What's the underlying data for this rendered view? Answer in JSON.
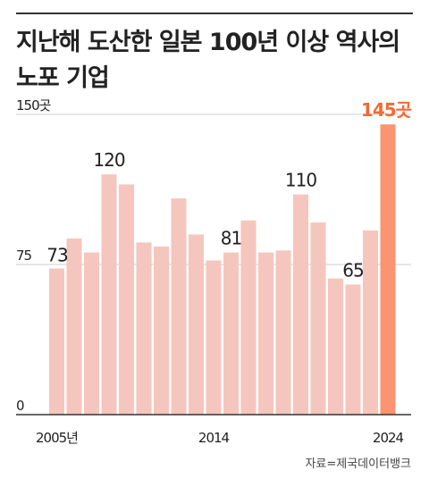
{
  "title_line1": "지난해 도산한 일본 100년 이상 역사의",
  "title_line2": "노포 기업",
  "source": "자료=제국데이터뱅크",
  "colors": {
    "bar": "#f5c6bd",
    "highlight": "#fb9470",
    "highlight_label": "#f26a34",
    "grid": "#cccccc",
    "axis": "#333333",
    "text": "#222222"
  },
  "chart_data": {
    "type": "bar",
    "categories": [
      "2005",
      "2006",
      "2007",
      "2008",
      "2009",
      "2010",
      "2011",
      "2012",
      "2013",
      "2014",
      "2015",
      "2016",
      "2017",
      "2018",
      "2019",
      "2020",
      "2021",
      "2022",
      "2023",
      "2024"
    ],
    "values": [
      73,
      88,
      81,
      120,
      115,
      86,
      84,
      108,
      90,
      77,
      81,
      97,
      81,
      82,
      110,
      96,
      68,
      65,
      92,
      145
    ],
    "ylim": [
      0,
      150
    ],
    "y_ticks": [
      {
        "value": 0,
        "label": "0"
      },
      {
        "value": 75,
        "label": "75"
      },
      {
        "value": 150,
        "label": "150곳"
      }
    ],
    "x_tick_labels": [
      {
        "index": 0,
        "label": "2005년"
      },
      {
        "index": 9,
        "label": "2014"
      },
      {
        "index": 19,
        "label": "2024"
      }
    ],
    "data_labels": [
      {
        "index": 0,
        "label": "73"
      },
      {
        "index": 3,
        "label": "120"
      },
      {
        "index": 10,
        "label": "81"
      },
      {
        "index": 14,
        "label": "110"
      },
      {
        "index": 17,
        "label": "65"
      },
      {
        "index": 19,
        "label": "145곳"
      }
    ],
    "highlight_index": 19,
    "title": "지난해 도산한 일본 100년 이상 역사의 노포 기업",
    "xlabel": "",
    "ylabel": ""
  }
}
